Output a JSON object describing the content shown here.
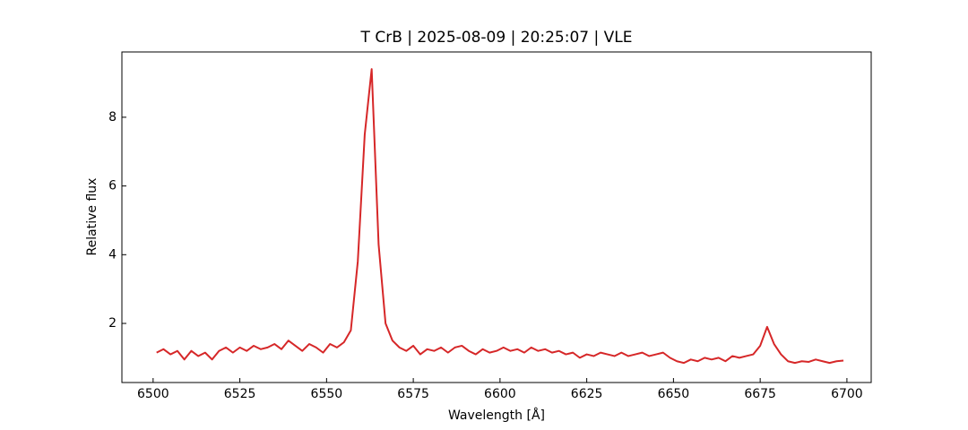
{
  "chart_data": {
    "type": "line",
    "title": "T CrB | 2025-08-09 | 20:25:07 | VLE",
    "x_label": "Wavelength [Å]",
    "y_label": "Relative flux",
    "xlim": [
      6491,
      6707
    ],
    "ylim": [
      0.28,
      9.9
    ],
    "xticks": [
      6500,
      6525,
      6550,
      6575,
      6600,
      6625,
      6650,
      6675,
      6700
    ],
    "yticks": [
      2,
      4,
      6,
      8
    ],
    "series": [
      {
        "color": "#d62728",
        "x": [
          6501,
          6503,
          6505,
          6507,
          6509,
          6511,
          6513,
          6515,
          6517,
          6519,
          6521,
          6523,
          6525,
          6527,
          6529,
          6531,
          6533,
          6535,
          6537,
          6539,
          6541,
          6543,
          6545,
          6547,
          6549,
          6551,
          6553,
          6555,
          6557,
          6559,
          6561,
          6563,
          6565,
          6567,
          6569,
          6571,
          6573,
          6575,
          6577,
          6579,
          6581,
          6583,
          6585,
          6587,
          6589,
          6591,
          6593,
          6595,
          6597,
          6599,
          6601,
          6603,
          6605,
          6607,
          6609,
          6611,
          6613,
          6615,
          6617,
          6619,
          6621,
          6623,
          6625,
          6627,
          6629,
          6631,
          6633,
          6635,
          6637,
          6639,
          6641,
          6643,
          6645,
          6647,
          6649,
          6651,
          6653,
          6655,
          6657,
          6659,
          6661,
          6663,
          6665,
          6667,
          6669,
          6671,
          6673,
          6675,
          6677,
          6679,
          6681,
          6683,
          6685,
          6687,
          6689,
          6691,
          6693,
          6695,
          6697,
          6699
        ],
        "values": [
          1.15,
          1.25,
          1.1,
          1.2,
          0.95,
          1.2,
          1.05,
          1.15,
          0.95,
          1.2,
          1.3,
          1.15,
          1.3,
          1.2,
          1.35,
          1.25,
          1.3,
          1.4,
          1.25,
          1.5,
          1.35,
          1.2,
          1.4,
          1.3,
          1.15,
          1.4,
          1.3,
          1.45,
          1.8,
          3.8,
          7.5,
          9.4,
          4.3,
          2.0,
          1.5,
          1.3,
          1.2,
          1.35,
          1.1,
          1.25,
          1.2,
          1.3,
          1.15,
          1.3,
          1.35,
          1.2,
          1.1,
          1.25,
          1.15,
          1.2,
          1.3,
          1.2,
          1.25,
          1.15,
          1.3,
          1.2,
          1.25,
          1.15,
          1.2,
          1.1,
          1.15,
          1.0,
          1.1,
          1.05,
          1.15,
          1.1,
          1.05,
          1.15,
          1.05,
          1.1,
          1.15,
          1.05,
          1.1,
          1.15,
          1.0,
          0.9,
          0.85,
          0.95,
          0.9,
          1.0,
          0.95,
          1.0,
          0.9,
          1.05,
          1.0,
          1.05,
          1.1,
          1.35,
          1.9,
          1.4,
          1.1,
          0.9,
          0.85,
          0.9,
          0.88,
          0.95,
          0.9,
          0.85,
          0.9,
          0.92
        ]
      }
    ]
  }
}
